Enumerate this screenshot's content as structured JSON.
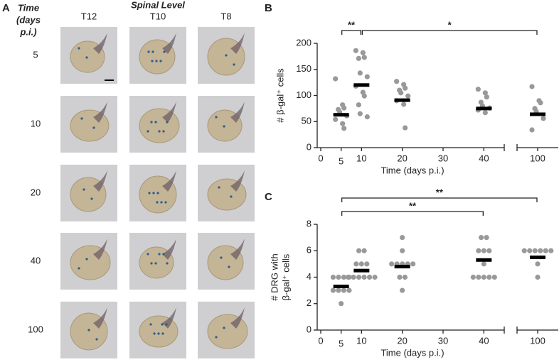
{
  "panel_a": {
    "label": "A",
    "time_header": [
      "Time",
      "(days",
      "p.i.)"
    ],
    "level_header": "Spinal Level",
    "columns": [
      "T12",
      "T10",
      "T8"
    ],
    "rows": [
      "5",
      "10",
      "20",
      "40",
      "100"
    ]
  },
  "chart_data": [
    {
      "type": "scatter",
      "panel_label": "B",
      "ylabel": [
        "# β-gal⁺ cells"
      ],
      "xlabel": "Time (days p.i.)",
      "xlim": [
        0,
        105
      ],
      "x_break": [
        45,
        95
      ],
      "xticks": [
        0,
        5,
        10,
        20,
        30,
        40,
        100
      ],
      "ylim": [
        0,
        200
      ],
      "yticks": [
        0,
        50,
        100,
        150,
        200
      ],
      "color": "#999999",
      "mean_color": "#000000",
      "points": {
        "x": [
          5,
          5,
          5,
          5,
          5,
          5,
          5,
          5,
          5,
          10,
          10,
          10,
          10,
          10,
          10,
          10,
          10,
          10,
          10,
          10,
          10,
          20,
          20,
          20,
          20,
          20,
          20,
          20,
          20,
          20,
          40,
          40,
          40,
          40,
          40,
          40,
          40,
          40,
          100,
          100,
          100,
          100,
          100,
          100,
          100
        ],
        "y": [
          132,
          82,
          76,
          73,
          68,
          61,
          54,
          46,
          37,
          186,
          182,
          173,
          171,
          143,
          136,
          118,
          106,
          99,
          82,
          65,
          59,
          127,
          121,
          114,
          110,
          105,
          99,
          90,
          83,
          38,
          112,
          105,
          97,
          87,
          80,
          76,
          72,
          67,
          117,
          90,
          86,
          75,
          69,
          56,
          34
        ]
      },
      "means": {
        "x": [
          5,
          10,
          20,
          40,
          100
        ],
        "y": [
          63,
          120,
          91,
          75,
          64
        ]
      },
      "annotations": [
        {
          "x": [
            5,
            10
          ],
          "label": "**"
        },
        {
          "x": [
            10,
            100
          ],
          "label": "*"
        }
      ]
    },
    {
      "type": "scatter",
      "panel_label": "C",
      "ylabel": [
        "# DRG with",
        "β-gal⁺ cells"
      ],
      "xlabel": "Time (days p.i.)",
      "xlim": [
        0,
        105
      ],
      "x_break": [
        45,
        95
      ],
      "xticks": [
        0,
        5,
        10,
        20,
        30,
        40,
        100
      ],
      "ylim": [
        0,
        8
      ],
      "yticks": [
        0,
        2,
        4,
        6,
        8
      ],
      "color": "#999999",
      "mean_color": "#000000",
      "points": {
        "x": [
          5,
          5,
          5,
          5,
          5,
          5,
          5,
          5,
          5,
          10,
          10,
          10,
          10,
          10,
          10,
          10,
          10,
          10,
          10,
          10,
          20,
          20,
          20,
          20,
          20,
          20,
          20,
          20,
          20,
          20,
          40,
          40,
          40,
          40,
          40,
          40,
          40,
          40,
          40,
          40,
          40,
          100,
          100,
          100,
          100,
          100,
          100,
          100,
          100
        ],
        "y": [
          4,
          4,
          4,
          4,
          3,
          3,
          3,
          3,
          2,
          6,
          6,
          5,
          5,
          5,
          4,
          4,
          4,
          4,
          4,
          4,
          7,
          6,
          5,
          5,
          5,
          5,
          5,
          4,
          4,
          3,
          7,
          7,
          6,
          6,
          6,
          5,
          4,
          4,
          4,
          4,
          4,
          6,
          6,
          6,
          6,
          6,
          6,
          5,
          4
        ]
      },
      "means": {
        "x": [
          5,
          10,
          20,
          40,
          100
        ],
        "y": [
          3.3,
          4.5,
          4.8,
          5.3,
          5.5
        ]
      },
      "annotations": [
        {
          "x": [
            5,
            40
          ],
          "label": "**"
        },
        {
          "x": [
            5,
            100
          ],
          "label": "**"
        }
      ]
    }
  ]
}
